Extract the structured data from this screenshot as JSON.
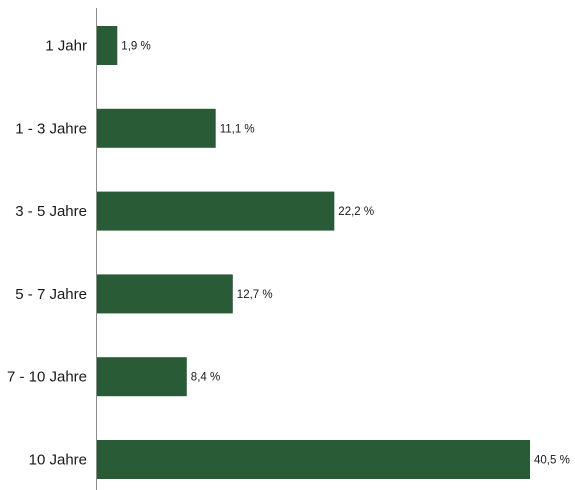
{
  "chart_data": {
    "type": "bar",
    "orientation": "horizontal",
    "categories": [
      "1 Jahr",
      "1 - 3 Jahre",
      "3 - 5 Jahre",
      "5 - 7 Jahre",
      "7 - 10 Jahre",
      "10 Jahre"
    ],
    "values": [
      1.9,
      11.1,
      22.2,
      12.7,
      8.4,
      40.5
    ],
    "value_labels": [
      "1,9 %",
      "11,1 %",
      "22,2 %",
      "12,7 %",
      "8,4 %",
      "40,5 %"
    ],
    "unit": "%",
    "title": "",
    "xlabel": "",
    "ylabel": "",
    "xlim": [
      0,
      40.5
    ],
    "grid": false,
    "legend": "none",
    "colors": {
      "bar": "#2a5b37",
      "axis": "#8a8a8a",
      "text": "#1a1a1a"
    }
  }
}
